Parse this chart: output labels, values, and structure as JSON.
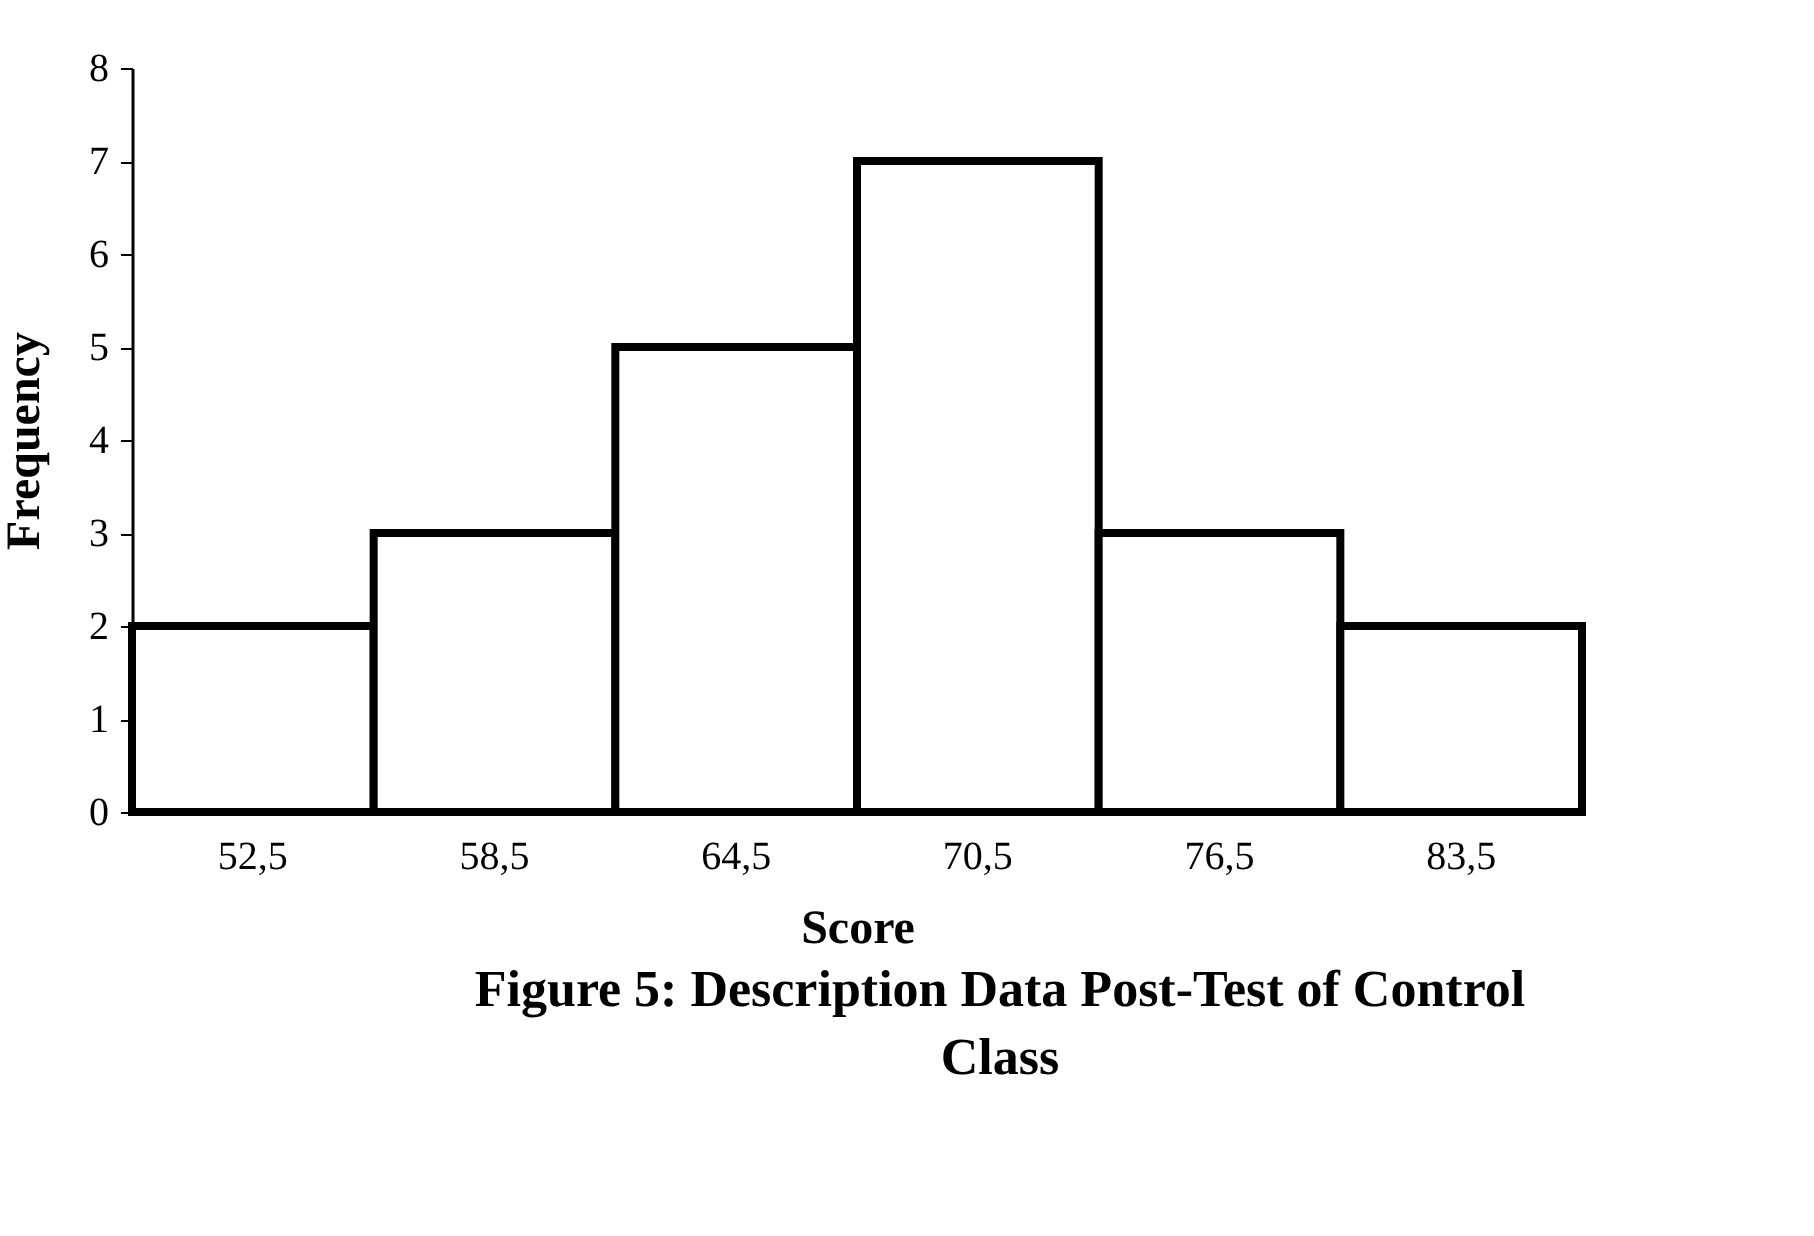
{
  "chart_data": {
    "type": "bar",
    "xlabel": "Score",
    "ylabel": "Frequency",
    "categories": [
      "52,5",
      "58,5",
      "64,5",
      "70,5",
      "76,5",
      "83,5"
    ],
    "values": [
      2,
      3,
      5,
      7,
      3,
      2
    ],
    "color": "#ffffff",
    "ylim": [
      0,
      8
    ],
    "yticks": [
      0,
      1,
      2,
      3,
      4,
      5,
      6,
      7,
      8
    ],
    "grid": false,
    "annotations": [
      "Figure 5: Description Data Post-Test of Control Class"
    ]
  }
}
